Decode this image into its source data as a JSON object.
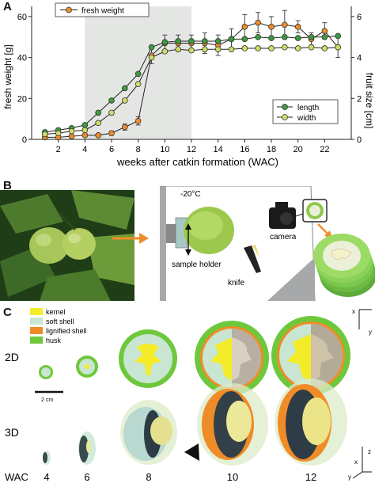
{
  "panels": {
    "a": "A",
    "b": "B",
    "c": "C"
  },
  "chart_data": {
    "type": "line",
    "xlabel": "weeks after catkin formation (WAC)",
    "ylabel_left": "fresh weight [g]",
    "ylabel_right": "fruit size [cm]",
    "xlim": [
      0,
      24
    ],
    "ylim_left": [
      0,
      65
    ],
    "ylim_right": [
      0,
      6.5
    ],
    "x_ticks": [
      2,
      4,
      6,
      8,
      10,
      12,
      14,
      16,
      18,
      20,
      22
    ],
    "y_left_ticks": [
      0,
      20,
      40,
      60
    ],
    "y_right_ticks": [
      0,
      2,
      4,
      6
    ],
    "shaded_region": [
      4,
      12
    ],
    "x": [
      1,
      2,
      3,
      4,
      5,
      6,
      7,
      8,
      9,
      10,
      11,
      12,
      13,
      14,
      15,
      16,
      17,
      18,
      19,
      20,
      21,
      22,
      23
    ],
    "series": [
      {
        "name": "fresh weight",
        "axis": "left",
        "color": "#f08c28",
        "values": [
          1,
          1,
          1.5,
          2,
          2,
          3,
          6,
          9,
          41,
          47,
          47,
          47,
          47,
          46,
          49,
          55,
          57,
          55,
          56,
          55,
          49,
          53,
          45
        ],
        "errors": [
          0.3,
          0.3,
          0.5,
          0.5,
          0.7,
          1,
          1.5,
          2,
          4,
          4,
          4,
          4,
          5,
          5,
          5,
          6,
          5,
          5,
          7,
          3,
          3,
          4,
          5
        ]
      },
      {
        "name": "length",
        "axis": "right",
        "color": "#3c9b3c",
        "values": [
          0.35,
          0.45,
          0.55,
          0.7,
          1.3,
          1.9,
          2.5,
          3.2,
          4.5,
          4.75,
          4.8,
          4.8,
          4.8,
          4.8,
          4.9,
          4.9,
          5.0,
          4.95,
          5.0,
          4.95,
          5.0,
          5.0,
          5.05
        ]
      },
      {
        "name": "width",
        "axis": "right",
        "color": "#d2dc64",
        "values": [
          0.25,
          0.3,
          0.4,
          0.45,
          0.8,
          1.3,
          1.9,
          2.7,
          4.0,
          4.3,
          4.4,
          4.35,
          4.4,
          4.4,
          4.4,
          4.45,
          4.45,
          4.45,
          4.5,
          4.45,
          4.5,
          4.45,
          4.5
        ]
      }
    ],
    "legend_placement_weight": "top-left",
    "legend_placement_size": "right"
  },
  "diagram_b": {
    "temperature": "-20°C",
    "sample_holder": "sample holder",
    "knife": "knife",
    "camera": "camera"
  },
  "panel_c": {
    "legend": [
      {
        "label": "kernel",
        "color": "#f4ec28"
      },
      {
        "label": "soft shell",
        "color": "#c8e6d2"
      },
      {
        "label": "lignified shell",
        "color": "#f08c28"
      },
      {
        "label": "husk",
        "color": "#6ec83c"
      }
    ],
    "row_2d": "2D",
    "row_3d": "3D",
    "scale_bar": "2 cm",
    "wac_label": "WAC",
    "wac_values": [
      "4",
      "6",
      "8",
      "10",
      "12"
    ],
    "axis_x": "x",
    "axis_y": "y",
    "axis_z": "z"
  }
}
